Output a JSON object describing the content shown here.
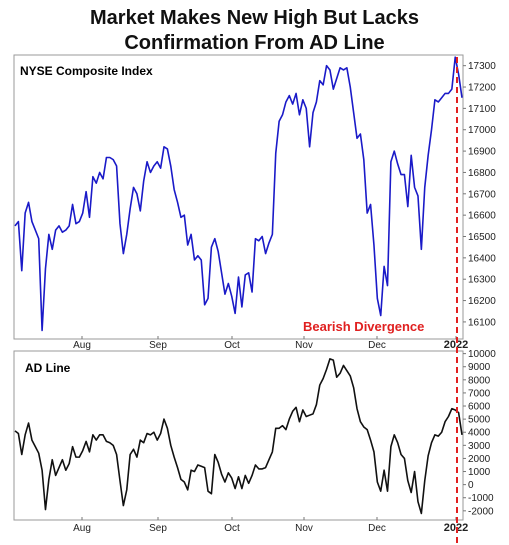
{
  "title_line1": "Market Makes New High But Lacks",
  "title_line2": "Confirmation From AD Line",
  "colors": {
    "nyse": "#1a1ac8",
    "ad": "#111111",
    "divergence": "#e02020"
  },
  "chart_data": [
    {
      "type": "line",
      "series_label": "NYSE Composite Index",
      "annotation": "Bearish Divergence",
      "ylim": [
        16020,
        17350
      ],
      "yticks": [
        16100,
        16200,
        16300,
        16400,
        16500,
        16600,
        16700,
        16800,
        16900,
        17000,
        17100,
        17200,
        17300
      ],
      "x_tick_labels": [
        "Aug",
        "Sep",
        "Oct",
        "Nov",
        "Dec",
        "2022"
      ],
      "values": [
        16550,
        16570,
        16340,
        16610,
        16660,
        16570,
        16530,
        16490,
        16060,
        16350,
        16510,
        16440,
        16530,
        16550,
        16520,
        16530,
        16550,
        16650,
        16560,
        16570,
        16610,
        16710,
        16590,
        16780,
        16750,
        16800,
        16770,
        16870,
        16870,
        16860,
        16830,
        16560,
        16420,
        16510,
        16630,
        16730,
        16700,
        16620,
        16760,
        16850,
        16800,
        16830,
        16850,
        16820,
        16920,
        16910,
        16830,
        16720,
        16660,
        16590,
        16600,
        16460,
        16510,
        16390,
        16410,
        16390,
        16180,
        16210,
        16450,
        16490,
        16430,
        16330,
        16230,
        16280,
        16220,
        16140,
        16310,
        16170,
        16320,
        16330,
        16240,
        16490,
        16480,
        16500,
        16420,
        16470,
        16510,
        16890,
        17040,
        17070,
        17130,
        17160,
        17120,
        17170,
        17070,
        17140,
        17100,
        16920,
        17080,
        17130,
        17230,
        17210,
        17300,
        17280,
        17190,
        17240,
        17290,
        17280,
        17290,
        17200,
        17080,
        16960,
        16980,
        16860,
        16610,
        16650,
        16460,
        16210,
        16130,
        16360,
        16270,
        16850,
        16900,
        16840,
        16790,
        16790,
        16640,
        16880,
        16730,
        16690,
        16440,
        16730,
        16880,
        17000,
        17140,
        17130,
        17150,
        17170,
        17170,
        17190,
        17340,
        17260,
        17150
      ],
      "divergence_x_label": "2022"
    },
    {
      "type": "line",
      "series_label": "AD Line",
      "ylim": [
        -2700,
        10200
      ],
      "yticks": [
        -2000,
        -1000,
        0,
        1000,
        2000,
        3000,
        4000,
        5000,
        6000,
        7000,
        8000,
        9000,
        10000
      ],
      "x_tick_labels": [
        "Aug",
        "Sep",
        "Oct",
        "Nov",
        "Dec",
        "2022"
      ],
      "values": [
        4100,
        3900,
        2300,
        3800,
        4700,
        3400,
        2900,
        2400,
        1100,
        -1900,
        400,
        1900,
        700,
        1300,
        1900,
        1100,
        1600,
        2900,
        2100,
        2100,
        2600,
        3300,
        2500,
        3800,
        3400,
        3800,
        3800,
        3300,
        3200,
        3000,
        2300,
        300,
        -1600,
        -400,
        2300,
        2700,
        2100,
        3400,
        3200,
        3900,
        3800,
        4000,
        3400,
        3900,
        5000,
        4300,
        3000,
        2100,
        1300,
        400,
        200,
        -400,
        1100,
        1000,
        1500,
        1400,
        1300,
        -500,
        -700,
        2300,
        1700,
        800,
        200,
        900,
        500,
        -300,
        600,
        -300,
        700,
        100,
        700,
        1500,
        1200,
        1200,
        1300,
        1900,
        2500,
        4300,
        4300,
        4500,
        4200,
        5000,
        5600,
        5900,
        4800,
        5700,
        5200,
        5300,
        5400,
        6100,
        7600,
        8100,
        8800,
        9600,
        9500,
        8200,
        8500,
        9100,
        8700,
        8300,
        7400,
        5800,
        4800,
        4400,
        4200,
        3400,
        2500,
        200,
        -500,
        1100,
        -500,
        2900,
        3800,
        3200,
        2300,
        2000,
        300,
        -600,
        1000,
        -1300,
        -2200,
        300,
        2200,
        3200,
        3800,
        3700,
        4000,
        4800,
        5200,
        5800,
        5700,
        5500,
        3800
      ],
      "divergence_x_label": "2022"
    }
  ]
}
